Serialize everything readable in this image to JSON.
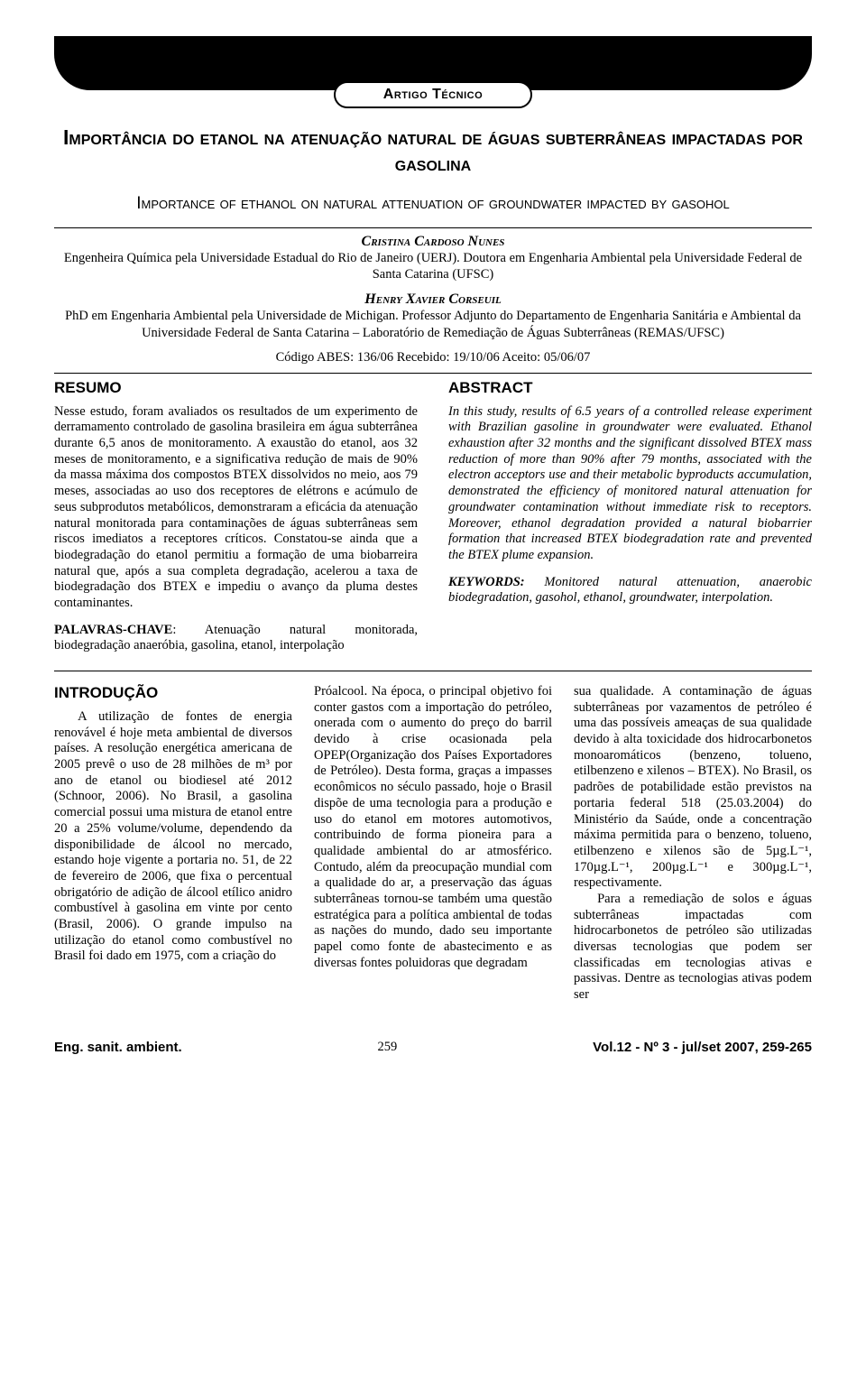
{
  "badge": "Artigo Técnico",
  "title_pt": "Importância do etanol na atenuação natural de águas subterrâneas impactadas por gasolina",
  "title_en": "Importance of ethanol on natural attenuation of groundwater impacted by gasohol",
  "author1_name": "Cristina Cardoso Nunes",
  "author1_aff": "Engenheira Química pela Universidade Estadual do Rio de Janeiro (UERJ). Doutora em Engenharia Ambiental pela Universidade Federal de Santa Catarina (UFSC)",
  "author2_name": "Henry Xavier Corseuil",
  "author2_aff": "PhD em Engenharia Ambiental pela Universidade de Michigan. Professor Adjunto do Departamento de Engenharia Sanitária e Ambiental da Universidade Federal de Santa Catarina – Laboratório de Remediação de Águas Subterrâneas (REMAS/UFSC)",
  "codes": "Código ABES: 136/06      Recebido: 19/10/06      Aceito: 05/06/07",
  "resumo_head": "RESUMO",
  "abstract_head": "ABSTRACT",
  "resumo_body": "Nesse estudo, foram avaliados os resultados de um experimento de derramamento controlado de gasolina brasileira em água subterrânea durante 6,5 anos de monitoramento. A exaustão do etanol, aos 32 meses de monitoramento, e a significativa redução de mais de 90% da massa máxima dos compostos BTEX dissolvidos no meio, aos 79 meses, associadas ao uso dos receptores de elétrons e acúmulo de seus subprodutos metabólicos, demonstraram a eficácia da atenuação natural monitorada para contaminações de águas subterrâneas sem riscos imediatos a receptores críticos. Constatou-se ainda que a biodegradação do etanol permitiu a formação de uma biobarreira natural que, após a sua completa degradação, acelerou a taxa de biodegradação dos BTEX e impediu o avanço da pluma destes contaminantes.",
  "abstract_body": "In this study, results of 6.5 years of a controlled release experiment with Brazilian gasoline in groundwater were evaluated. Ethanol exhaustion after 32 months and the significant dissolved BTEX mass reduction of more than 90% after 79 months, associated with the electron acceptors use and their metabolic byproducts accumulation, demonstrated the efficiency of monitored natural attenuation for groundwater contamination without immediate risk to receptors. Moreover, ethanol degradation provided a natural biobarrier formation that increased BTEX biodegradation rate and prevented the BTEX plume expansion.",
  "palavras_label": "PALAVRAS-CHAVE",
  "palavras_body": ": Atenuação natural monitorada, biodegradação anaeróbia, gasolina, etanol, interpolação",
  "keywords_label": "KEYWORDS:",
  "keywords_body": " Monitored natural attenuation, anaerobic biodegradation, gasohol, ethanol, groundwater, interpolation.",
  "intro_head": "INTRODUÇÃO",
  "intro_col1": "A utilização de fontes de energia renovável é hoje meta ambiental de diversos países. A resolução energética americana de 2005 prevê o uso de 28 milhões de m³ por ano de etanol ou biodiesel até 2012 (Schnoor, 2006). No Brasil, a gasolina comercial possui uma mistura de etanol entre 20 a 25% volume/volume, dependendo da disponibilidade de álcool no mercado, estando hoje vigente a portaria no. 51, de 22 de fevereiro de 2006, que fixa o percentual obrigatório de adição de álcool etílico anidro combustível à gasolina em vinte por cento (Brasil, 2006). O grande impulso na utilização do etanol como combustível no Brasil foi dado em 1975, com a criação do",
  "intro_col2": "Próalcool. Na época, o principal objetivo foi conter gastos com a importação do petróleo, onerada com o aumento do preço do barril devido à crise ocasionada pela OPEP(Organização dos Países Exportadores de Petróleo). Desta forma, graças a impasses econômicos no século passado, hoje o Brasil dispõe de uma tecnologia para a produção e uso do etanol em motores automotivos, contribuindo de forma pioneira para a qualidade ambiental do ar atmosférico. Contudo, além da preocupação mundial com a qualidade do ar, a preservação das águas subterrâneas tornou-se também uma questão estratégica para a política ambiental de todas as nações do mundo, dado seu importante papel como fonte de abastecimento e as diversas fontes poluidoras que degradam",
  "intro_col3a": "sua qualidade.  A contaminação de águas subterrâneas por vazamentos de petróleo é uma das possíveis ameaças de sua qualidade devido à alta toxicidade dos hidrocarbonetos monoaromáticos (benzeno, tolueno, etilbenzeno e xilenos – BTEX). No Brasil, os padrões de potabilidade estão previstos na portaria federal 518 (25.03.2004) do Ministério da Saúde, onde a concentração máxima permitida para o benzeno, tolueno, etilbenzeno e xilenos são de 5µg.L⁻¹, 170µg.L⁻¹, 200µg.L⁻¹ e 300µg.L⁻¹, respectivamente.",
  "intro_col3b": "Para a remediação de solos e águas subterrâneas impactadas com hidrocarbonetos de petróleo são utilizadas diversas tecnologias que podem ser classificadas em tecnologias ativas e passivas. Dentre as tecnologias ativas podem ser",
  "footer_journal": "Eng. sanit. ambient.",
  "footer_page": "259",
  "footer_issue": "Vol.12 - Nº 3 - jul/set 2007, 259-265"
}
